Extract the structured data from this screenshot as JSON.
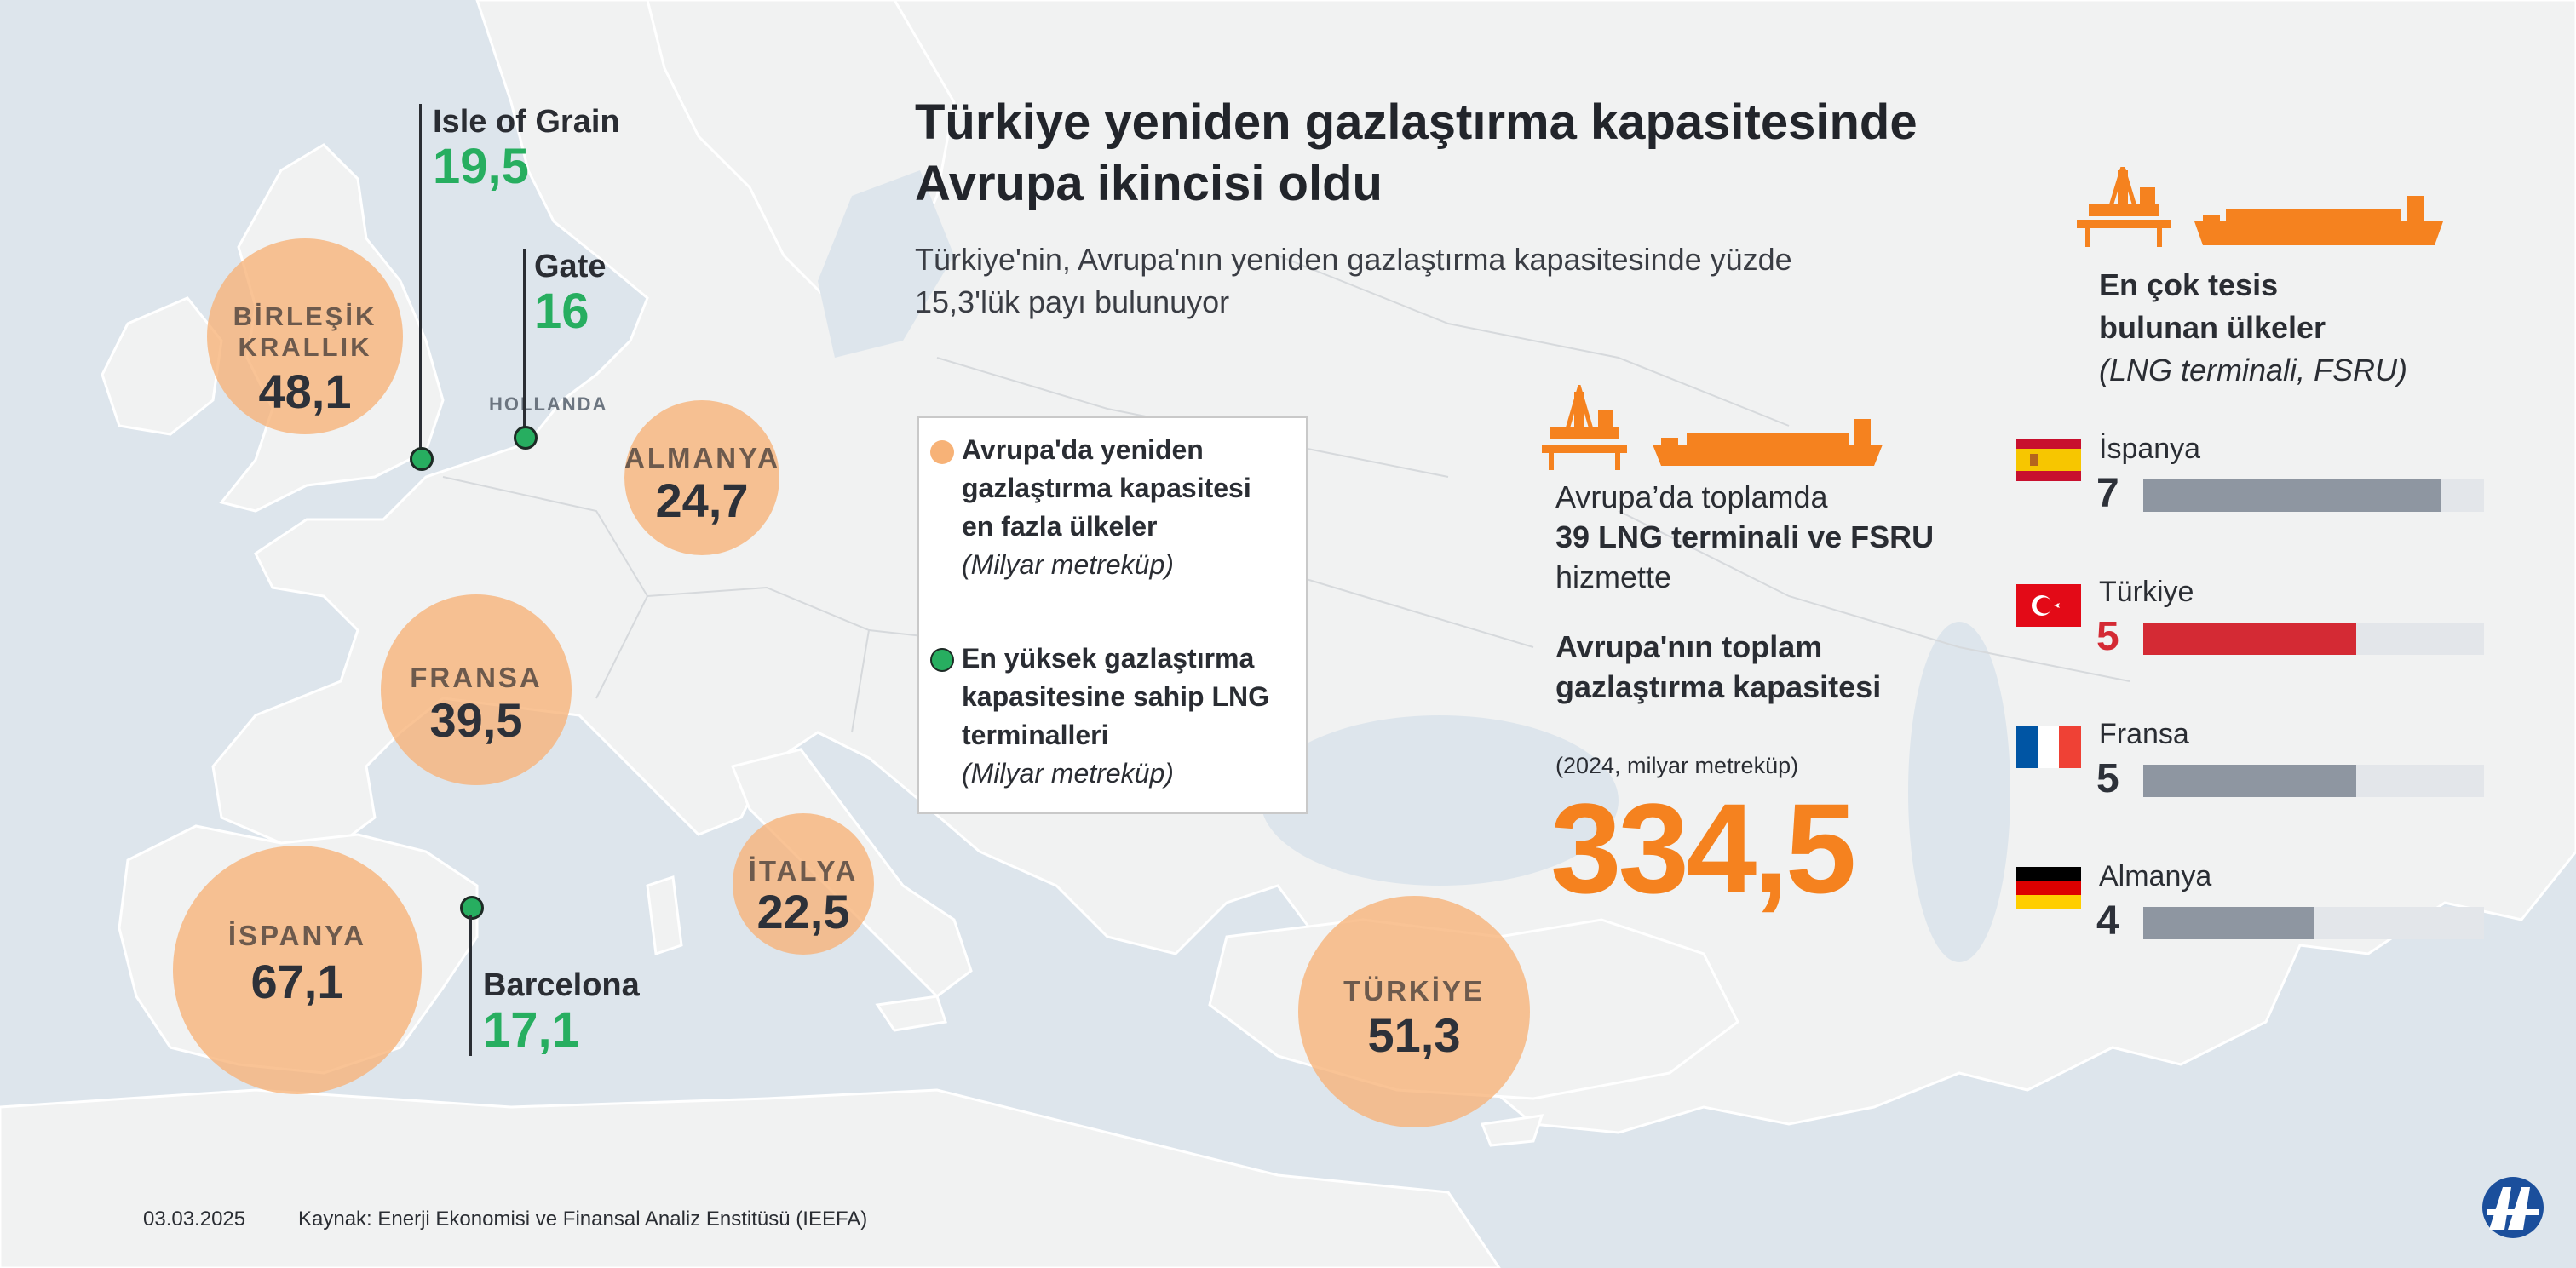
{
  "title": "Türkiye yeniden gazlaştırma kapasitesinde Avrupa ikincisi oldu",
  "subtitle": "Türkiye'nin, Avrupa'nın yeniden gazlaştırma kapasitesinde yüzde 15,3'lük payı bulunuyor",
  "map_label_hollanda": "HOLLANDA",
  "capacity_circles": [
    {
      "country": "BİRLEŞİK KRALLIK",
      "value": "48,1"
    },
    {
      "country": "ALMANYA",
      "value": "24,7"
    },
    {
      "country": "FRANSA",
      "value": "39,5"
    },
    {
      "country": "İSPANYA",
      "value": "67,1"
    },
    {
      "country": "İTALYA",
      "value": "22,5"
    },
    {
      "country": "TÜRKİYE",
      "value": "51,3"
    }
  ],
  "terminals": [
    {
      "name": "Isle of Grain",
      "value": "19,5"
    },
    {
      "name": "Gate",
      "value": "16"
    },
    {
      "name": "Barcelona",
      "value": "17,1"
    }
  ],
  "legend": {
    "item1": "Avrupa'da yeniden gazlaştırma kapasitesi en fazla ülkeler",
    "item1_unit": "(Milyar metreküp)",
    "item2": "En yüksek gazlaştırma kapasitesine sahip LNG terminalleri",
    "item2_unit": "(Milyar metreküp)",
    "colors": {
      "capacity": "#f7b277",
      "terminal": "#27ae60"
    }
  },
  "stats": {
    "line1": "Avrupa’da toplamda",
    "line2_bold": "39 LNG terminali ve FSRU",
    "line2_rest": " hizmette",
    "total_label": "Avrupa'nın toplam gazlaştırma kapasitesi",
    "total_unit": "(2024, milyar metreküp)",
    "total_value": "334,5"
  },
  "ranking": {
    "heading": "En çok tesis bulunan ülkeler",
    "heading_sub": "(LNG terminali, FSRU)",
    "max": 8,
    "items": [
      {
        "country": "İspanya",
        "count": 7,
        "count_label": "7",
        "color": "#8e96a1",
        "count_color": "#2d3139"
      },
      {
        "country": "Türkiye",
        "count": 5,
        "count_label": "5",
        "color": "#d42a34",
        "count_color": "#d42a34"
      },
      {
        "country": "Fransa",
        "count": 5,
        "count_label": "5",
        "color": "#8e96a1",
        "count_color": "#2d3139"
      },
      {
        "country": "Almanya",
        "count": 4,
        "count_label": "4",
        "color": "#8e96a1",
        "count_color": "#2d3139"
      }
    ]
  },
  "footer": {
    "date": "03.03.2025",
    "source": "Kaynak: Enerji Ekonomisi ve Finansal Analiz Enstitüsü (IEEFA)"
  },
  "logo": "AA",
  "icons": [
    "oil-platform-icon",
    "lng-tanker-icon",
    "flag-spain-icon",
    "flag-turkey-icon",
    "flag-france-icon",
    "flag-germany-icon"
  ]
}
